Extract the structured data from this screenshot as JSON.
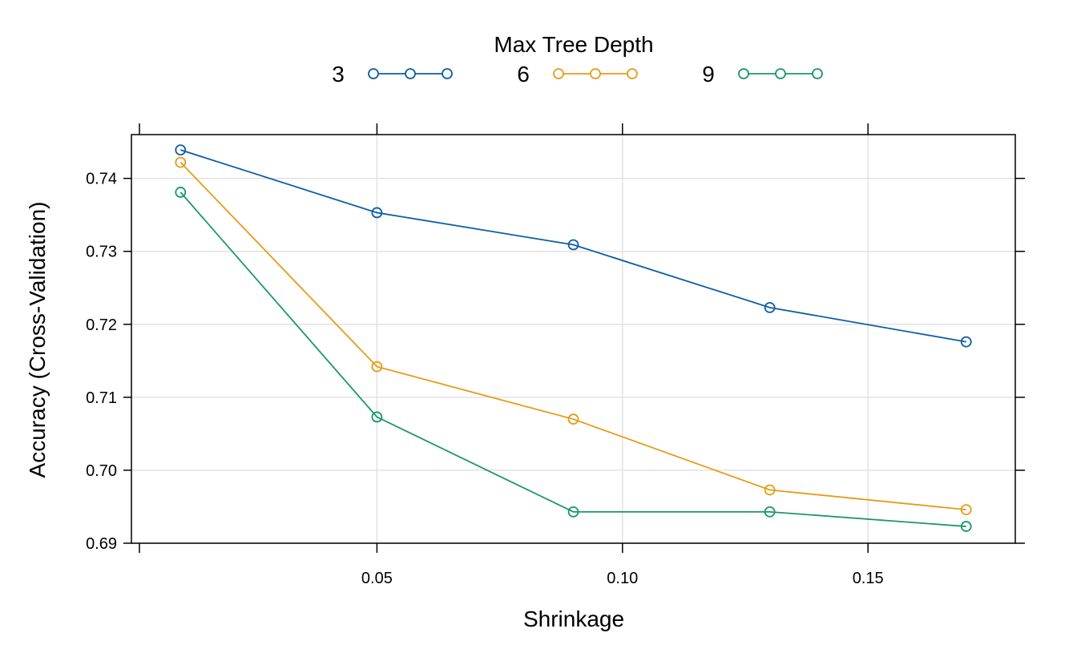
{
  "chart_data": {
    "type": "line",
    "legend_title": "Max Tree Depth",
    "legend_placement": "top",
    "xlabel": "Shrinkage",
    "ylabel": "Accuracy (Cross-Validation)",
    "xlim": [
      0.0,
      0.18
    ],
    "ylim": [
      0.69,
      0.746
    ],
    "x_ticks": [
      0.05,
      0.1,
      0.15
    ],
    "x_tick_labels": [
      "0.05",
      "0.10",
      "0.15"
    ],
    "y_ticks": [
      0.69,
      0.7,
      0.71,
      0.72,
      0.73,
      0.74
    ],
    "y_tick_labels": [
      "0.69",
      "0.70",
      "0.71",
      "0.72",
      "0.73",
      "0.74"
    ],
    "grid": true,
    "x": [
      0.01,
      0.05,
      0.09,
      0.13,
      0.17
    ],
    "series": [
      {
        "name": "3",
        "color": "#0b5fa5",
        "values": [
          0.7439,
          0.7353,
          0.7309,
          0.7223,
          0.7176
        ]
      },
      {
        "name": "6",
        "color": "#e69c17",
        "values": [
          0.7422,
          0.7142,
          0.707,
          0.6973,
          0.6946
        ]
      },
      {
        "name": "9",
        "color": "#1a9770",
        "values": [
          0.7381,
          0.7073,
          0.6943,
          0.6943,
          0.6923
        ]
      }
    ]
  }
}
